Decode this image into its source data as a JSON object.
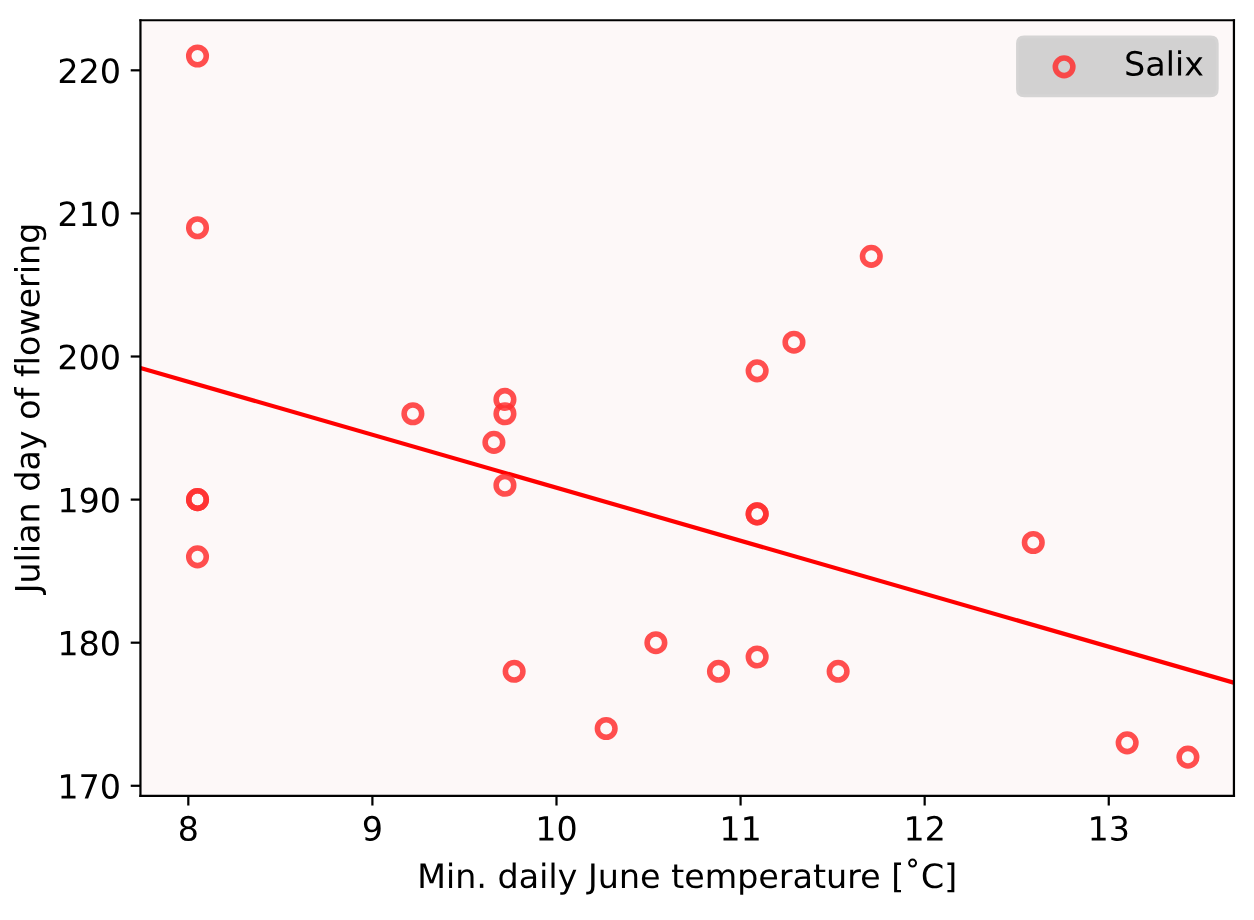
{
  "chart_data": {
    "type": "scatter",
    "xlabel": "Min. daily June temperature [˚C]",
    "ylabel": "Julian day of flowering",
    "xlim": [
      7.74,
      13.68
    ],
    "ylim": [
      169.3,
      223.5
    ],
    "xticks": [
      8,
      9,
      10,
      11,
      12,
      13
    ],
    "yticks": [
      170,
      180,
      190,
      200,
      210,
      220
    ],
    "grid": false,
    "legend": "top right",
    "series": [
      {
        "name": "Salix",
        "marker": "circle",
        "color": "#ff3030",
        "x": [
          8.05,
          8.05,
          8.05,
          8.05,
          8.05,
          9.22,
          9.66,
          9.72,
          9.72,
          9.72,
          9.77,
          10.27,
          10.54,
          10.88,
          11.09,
          11.09,
          11.09,
          11.09,
          11.29,
          11.53,
          11.71,
          12.59,
          13.1,
          13.43
        ],
        "values": [
          221,
          209,
          190,
          190,
          186,
          196,
          194,
          197,
          196,
          191,
          178,
          174,
          180,
          178,
          199,
          189,
          189,
          179,
          201,
          178,
          207,
          187,
          173,
          172
        ]
      },
      {
        "type": "line",
        "marker": "none",
        "color": "#ff0000",
        "x": [
          7.74,
          13.68
        ],
        "values": [
          199.2,
          177.2
        ]
      }
    ]
  }
}
